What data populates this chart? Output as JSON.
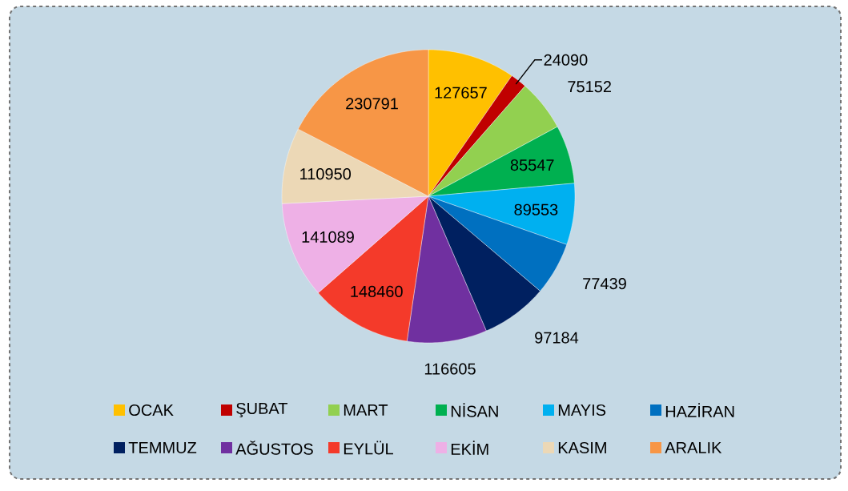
{
  "chart_data": {
    "type": "pie",
    "categories": [
      "OCAK",
      "ŞUBAT",
      "MART",
      "NİSAN",
      "MAYIS",
      "HAZİRAN",
      "TEMMUZ",
      "AĞUSTOS",
      "EYLÜL",
      "EKİM",
      "KASIM",
      "ARALIK"
    ],
    "values": [
      127657,
      24090,
      75152,
      85547,
      89553,
      77439,
      97184,
      116605,
      148460,
      141089,
      110950,
      230791
    ],
    "colors": [
      "#ffc000",
      "#c00000",
      "#92d050",
      "#00b050",
      "#00b0f0",
      "#0070c0",
      "#002060",
      "#7030a0",
      "#f43a2a",
      "#eeb0e6",
      "#ecd8b6",
      "#f79646"
    ],
    "data_labels": true,
    "legend": "bottom"
  }
}
